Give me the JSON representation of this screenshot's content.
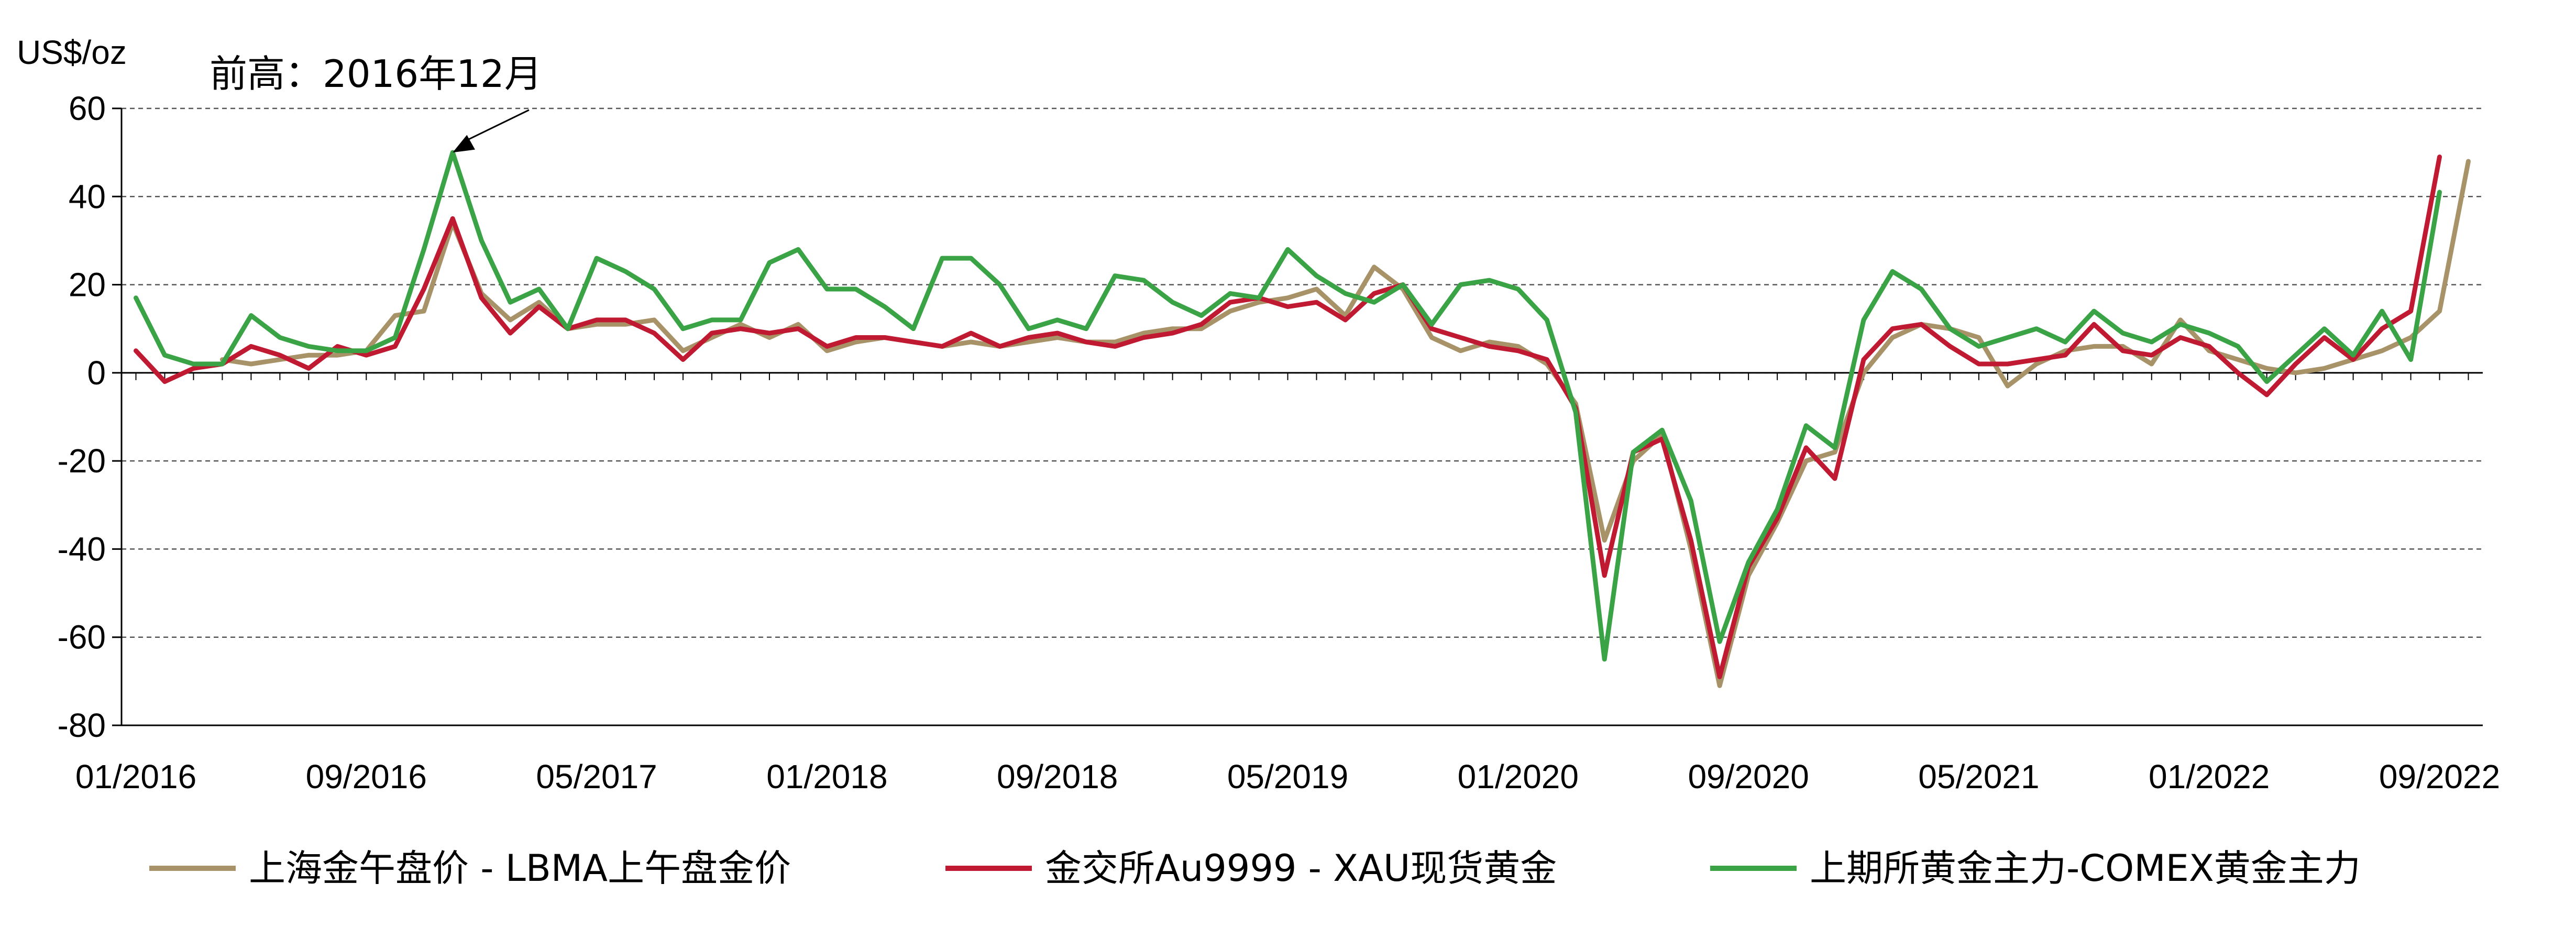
{
  "chart_data": {
    "type": "line",
    "unit_label": "US$/oz",
    "ylim": [
      -80,
      60
    ],
    "yticks": [
      60,
      40,
      20,
      0,
      -20,
      -40,
      -60,
      -80
    ],
    "grid": true,
    "x_start": "01/2016",
    "x_end": "09/2022",
    "x_tick_labels": [
      "01/2016",
      "09/2016",
      "05/2017",
      "01/2018",
      "09/2018",
      "05/2019",
      "01/2020",
      "09/2020",
      "05/2021",
      "01/2022",
      "09/2022"
    ],
    "annotation": {
      "text": "前高：2016年12月",
      "target_x": "12/2016",
      "target_y": 50
    },
    "legend_position": "bottom",
    "series": [
      {
        "name": "上海金午盘价 - LBMA上午盘金价",
        "color": "#A89268",
        "points": [
          [
            "04/2016",
            3
          ],
          [
            "05/2016",
            2
          ],
          [
            "06/2016",
            3
          ],
          [
            "07/2016",
            4
          ],
          [
            "08/2016",
            4
          ],
          [
            "09/2016",
            5
          ],
          [
            "10/2016",
            13
          ],
          [
            "11/2016",
            14
          ],
          [
            "12/2016",
            34
          ],
          [
            "01/2017",
            18
          ],
          [
            "02/2017",
            12
          ],
          [
            "03/2017",
            16
          ],
          [
            "04/2017",
            10
          ],
          [
            "05/2017",
            11
          ],
          [
            "06/2017",
            11
          ],
          [
            "07/2017",
            12
          ],
          [
            "08/2017",
            5
          ],
          [
            "09/2017",
            8
          ],
          [
            "10/2017",
            11
          ],
          [
            "11/2017",
            8
          ],
          [
            "12/2017",
            11
          ],
          [
            "01/2018",
            5
          ],
          [
            "02/2018",
            7
          ],
          [
            "03/2018",
            8
          ],
          [
            "04/2018",
            7
          ],
          [
            "05/2018",
            6
          ],
          [
            "06/2018",
            7
          ],
          [
            "07/2018",
            6
          ],
          [
            "08/2018",
            7
          ],
          [
            "09/2018",
            8
          ],
          [
            "10/2018",
            7
          ],
          [
            "11/2018",
            7
          ],
          [
            "12/2018",
            9
          ],
          [
            "01/2019",
            10
          ],
          [
            "02/2019",
            10
          ],
          [
            "03/2019",
            14
          ],
          [
            "04/2019",
            16
          ],
          [
            "05/2019",
            17
          ],
          [
            "06/2019",
            19
          ],
          [
            "07/2019",
            13
          ],
          [
            "08/2019",
            24
          ],
          [
            "09/2019",
            19
          ],
          [
            "10/2019",
            8
          ],
          [
            "11/2019",
            5
          ],
          [
            "12/2019",
            7
          ],
          [
            "01/2020",
            6
          ],
          [
            "02/2020",
            2
          ],
          [
            "03/2020",
            -7
          ],
          [
            "04/2020",
            -38
          ],
          [
            "05/2020",
            -20
          ],
          [
            "06/2020",
            -14
          ],
          [
            "07/2020",
            -40
          ],
          [
            "08/2020",
            -71
          ],
          [
            "09/2020",
            -46
          ],
          [
            "10/2020",
            -34
          ],
          [
            "11/2020",
            -20
          ],
          [
            "12/2020",
            -18
          ],
          [
            "01/2021",
            0
          ],
          [
            "02/2021",
            8
          ],
          [
            "03/2021",
            11
          ],
          [
            "04/2021",
            10
          ],
          [
            "05/2021",
            8
          ],
          [
            "06/2021",
            -3
          ],
          [
            "07/2021",
            2
          ],
          [
            "08/2021",
            5
          ],
          [
            "09/2021",
            6
          ],
          [
            "10/2021",
            6
          ],
          [
            "11/2021",
            2
          ],
          [
            "12/2021",
            12
          ],
          [
            "01/2022",
            5
          ],
          [
            "02/2022",
            3
          ],
          [
            "03/2022",
            1
          ],
          [
            "04/2022",
            0
          ],
          [
            "05/2022",
            1
          ],
          [
            "06/2022",
            3
          ],
          [
            "07/2022",
            5
          ],
          [
            "08/2022",
            8
          ],
          [
            "09/2022",
            14
          ],
          [
            "10/2022",
            48
          ]
        ]
      },
      {
        "name": "金交所Au9999 - XAU现货黄金",
        "color": "#C01A33",
        "points": [
          [
            "01/2016",
            5
          ],
          [
            "02/2016",
            -2
          ],
          [
            "03/2016",
            1
          ],
          [
            "04/2016",
            2
          ],
          [
            "05/2016",
            6
          ],
          [
            "06/2016",
            4
          ],
          [
            "07/2016",
            1
          ],
          [
            "08/2016",
            6
          ],
          [
            "09/2016",
            4
          ],
          [
            "10/2016",
            6
          ],
          [
            "11/2016",
            19
          ],
          [
            "12/2016",
            35
          ],
          [
            "01/2017",
            17
          ],
          [
            "02/2017",
            9
          ],
          [
            "03/2017",
            15
          ],
          [
            "04/2017",
            10
          ],
          [
            "05/2017",
            12
          ],
          [
            "06/2017",
            12
          ],
          [
            "07/2017",
            9
          ],
          [
            "08/2017",
            3
          ],
          [
            "09/2017",
            9
          ],
          [
            "10/2017",
            10
          ],
          [
            "11/2017",
            9
          ],
          [
            "12/2017",
            10
          ],
          [
            "01/2018",
            6
          ],
          [
            "02/2018",
            8
          ],
          [
            "03/2018",
            8
          ],
          [
            "04/2018",
            7
          ],
          [
            "05/2018",
            6
          ],
          [
            "06/2018",
            9
          ],
          [
            "07/2018",
            6
          ],
          [
            "08/2018",
            8
          ],
          [
            "09/2018",
            9
          ],
          [
            "10/2018",
            7
          ],
          [
            "11/2018",
            6
          ],
          [
            "12/2018",
            8
          ],
          [
            "01/2019",
            9
          ],
          [
            "02/2019",
            11
          ],
          [
            "03/2019",
            16
          ],
          [
            "04/2019",
            17
          ],
          [
            "05/2019",
            15
          ],
          [
            "06/2019",
            16
          ],
          [
            "07/2019",
            12
          ],
          [
            "08/2019",
            18
          ],
          [
            "09/2019",
            20
          ],
          [
            "10/2019",
            10
          ],
          [
            "11/2019",
            8
          ],
          [
            "12/2019",
            6
          ],
          [
            "01/2020",
            5
          ],
          [
            "02/2020",
            3
          ],
          [
            "03/2020",
            -8
          ],
          [
            "04/2020",
            -46
          ],
          [
            "05/2020",
            -18
          ],
          [
            "06/2020",
            -15
          ],
          [
            "07/2020",
            -38
          ],
          [
            "08/2020",
            -69
          ],
          [
            "09/2020",
            -44
          ],
          [
            "10/2020",
            -33
          ],
          [
            "11/2020",
            -17
          ],
          [
            "12/2020",
            -24
          ],
          [
            "01/2021",
            3
          ],
          [
            "02/2021",
            10
          ],
          [
            "03/2021",
            11
          ],
          [
            "04/2021",
            6
          ],
          [
            "05/2021",
            2
          ],
          [
            "06/2021",
            2
          ],
          [
            "07/2021",
            3
          ],
          [
            "08/2021",
            4
          ],
          [
            "09/2021",
            11
          ],
          [
            "10/2021",
            5
          ],
          [
            "11/2021",
            4
          ],
          [
            "12/2021",
            8
          ],
          [
            "01/2022",
            6
          ],
          [
            "02/2022",
            0
          ],
          [
            "03/2022",
            -5
          ],
          [
            "04/2022",
            2
          ],
          [
            "05/2022",
            8
          ],
          [
            "06/2022",
            3
          ],
          [
            "07/2022",
            10
          ],
          [
            "08/2022",
            14
          ],
          [
            "09/2022",
            49
          ]
        ]
      },
      {
        "name": "上期所黄金主力-COMEX黄金主力",
        "color": "#3AA346",
        "points": [
          [
            "01/2016",
            17
          ],
          [
            "02/2016",
            4
          ],
          [
            "03/2016",
            2
          ],
          [
            "04/2016",
            2
          ],
          [
            "05/2016",
            13
          ],
          [
            "06/2016",
            8
          ],
          [
            "07/2016",
            6
          ],
          [
            "08/2016",
            5
          ],
          [
            "09/2016",
            5
          ],
          [
            "10/2016",
            8
          ],
          [
            "11/2016",
            28
          ],
          [
            "12/2016",
            50
          ],
          [
            "01/2017",
            30
          ],
          [
            "02/2017",
            16
          ],
          [
            "03/2017",
            19
          ],
          [
            "04/2017",
            10
          ],
          [
            "05/2017",
            26
          ],
          [
            "06/2017",
            23
          ],
          [
            "07/2017",
            19
          ],
          [
            "08/2017",
            10
          ],
          [
            "09/2017",
            12
          ],
          [
            "10/2017",
            12
          ],
          [
            "11/2017",
            25
          ],
          [
            "12/2017",
            28
          ],
          [
            "01/2018",
            19
          ],
          [
            "02/2018",
            19
          ],
          [
            "03/2018",
            15
          ],
          [
            "04/2018",
            10
          ],
          [
            "05/2018",
            26
          ],
          [
            "06/2018",
            26
          ],
          [
            "07/2018",
            20
          ],
          [
            "08/2018",
            10
          ],
          [
            "09/2018",
            12
          ],
          [
            "10/2018",
            10
          ],
          [
            "11/2018",
            22
          ],
          [
            "12/2018",
            21
          ],
          [
            "01/2019",
            16
          ],
          [
            "02/2019",
            13
          ],
          [
            "03/2019",
            18
          ],
          [
            "04/2019",
            17
          ],
          [
            "05/2019",
            28
          ],
          [
            "06/2019",
            22
          ],
          [
            "07/2019",
            18
          ],
          [
            "08/2019",
            16
          ],
          [
            "09/2019",
            20
          ],
          [
            "10/2019",
            11
          ],
          [
            "11/2019",
            20
          ],
          [
            "12/2019",
            21
          ],
          [
            "01/2020",
            19
          ],
          [
            "02/2020",
            12
          ],
          [
            "03/2020",
            -9
          ],
          [
            "04/2020",
            -65
          ],
          [
            "05/2020",
            -18
          ],
          [
            "06/2020",
            -13
          ],
          [
            "07/2020",
            -29
          ],
          [
            "08/2020",
            -61
          ],
          [
            "09/2020",
            -43
          ],
          [
            "10/2020",
            -31
          ],
          [
            "11/2020",
            -12
          ],
          [
            "12/2020",
            -17
          ],
          [
            "01/2021",
            12
          ],
          [
            "02/2021",
            23
          ],
          [
            "03/2021",
            19
          ],
          [
            "04/2021",
            10
          ],
          [
            "05/2021",
            6
          ],
          [
            "06/2021",
            8
          ],
          [
            "07/2021",
            10
          ],
          [
            "08/2021",
            7
          ],
          [
            "09/2021",
            14
          ],
          [
            "10/2021",
            9
          ],
          [
            "11/2021",
            7
          ],
          [
            "12/2021",
            11
          ],
          [
            "01/2022",
            9
          ],
          [
            "02/2022",
            6
          ],
          [
            "03/2022",
            -2
          ],
          [
            "04/2022",
            4
          ],
          [
            "05/2022",
            10
          ],
          [
            "06/2022",
            4
          ],
          [
            "07/2022",
            14
          ],
          [
            "08/2022",
            3
          ],
          [
            "09/2022",
            41
          ]
        ]
      }
    ]
  }
}
